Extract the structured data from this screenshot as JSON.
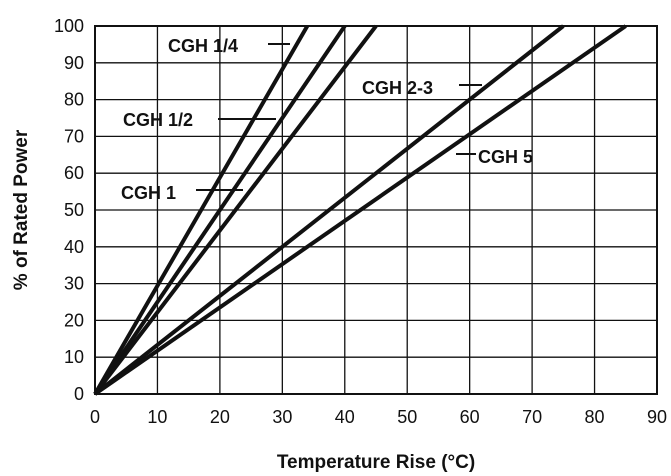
{
  "chart_data": {
    "type": "line",
    "title": "",
    "xlabel": "Temperature Rise (°C)",
    "ylabel": "% of Rated Power",
    "xlim": [
      0,
      90
    ],
    "ylim": [
      0,
      100
    ],
    "xticks": [
      0,
      10,
      20,
      30,
      40,
      50,
      60,
      70,
      80,
      90
    ],
    "yticks": [
      0,
      10,
      20,
      30,
      40,
      50,
      60,
      70,
      80,
      90,
      100
    ],
    "grid": true,
    "legend": "none",
    "line_color": "#111111",
    "series": [
      {
        "name": "CGH 1/4",
        "x": [
          0,
          34
        ],
        "y": [
          0,
          100
        ]
      },
      {
        "name": "CGH 1/2",
        "x": [
          0,
          40
        ],
        "y": [
          0,
          100
        ]
      },
      {
        "name": "CGH 1",
        "x": [
          0,
          45
        ],
        "y": [
          0,
          100
        ]
      },
      {
        "name": "CGH 2-3",
        "x": [
          0,
          75
        ],
        "y": [
          0,
          100
        ]
      },
      {
        "name": "CGH 5",
        "x": [
          0,
          85
        ],
        "y": [
          0,
          100
        ]
      }
    ]
  }
}
